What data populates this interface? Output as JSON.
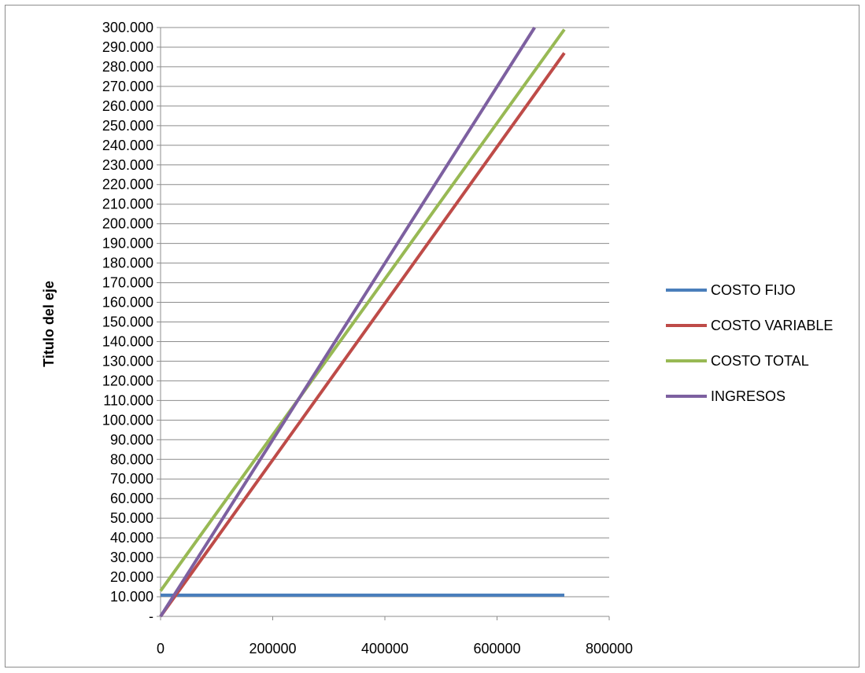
{
  "chart_data": {
    "type": "line",
    "title": "",
    "xlabel": "",
    "ylabel": "Titulo del eje",
    "xlim": [
      0,
      800000
    ],
    "ylim": [
      0,
      300000
    ],
    "x_ticks": [
      0,
      200000,
      400000,
      600000,
      800000
    ],
    "x_tick_labels": [
      "0",
      "200000",
      "400000",
      "600000",
      "800000"
    ],
    "y_ticks": [
      0,
      10000,
      20000,
      30000,
      40000,
      50000,
      60000,
      70000,
      80000,
      90000,
      100000,
      110000,
      120000,
      130000,
      140000,
      150000,
      160000,
      170000,
      180000,
      190000,
      200000,
      210000,
      220000,
      230000,
      240000,
      250000,
      260000,
      270000,
      280000,
      290000,
      300000
    ],
    "y_tick_labels": [
      "-",
      "10.000",
      "20.000",
      "30.000",
      "40.000",
      "50.000",
      "60.000",
      "70.000",
      "80.000",
      "90.000",
      "100.000",
      "110.000",
      "120.000",
      "130.000",
      "140.000",
      "150.000",
      "160.000",
      "170.000",
      "180.000",
      "190.000",
      "200.000",
      "210.000",
      "220.000",
      "230.000",
      "240.000",
      "250.000",
      "260.000",
      "270.000",
      "280.000",
      "290.000",
      "300.000"
    ],
    "grid": "horizontal",
    "legend_position": "right",
    "series": [
      {
        "name": "COSTO FIJO",
        "color": "#4a7ebb",
        "x": [
          0,
          720000
        ],
        "y": [
          10800,
          10800
        ]
      },
      {
        "name": "COSTO VARIABLE",
        "color": "#be4b48",
        "x": [
          0,
          720000
        ],
        "y": [
          0,
          287000
        ]
      },
      {
        "name": "COSTO TOTAL",
        "color": "#98b954",
        "x": [
          0,
          720000
        ],
        "y": [
          13000,
          299000
        ]
      },
      {
        "name": "INGRESOS",
        "color": "#7d60a0",
        "x": [
          0,
          667000
        ],
        "y": [
          0,
          300000
        ]
      }
    ]
  }
}
